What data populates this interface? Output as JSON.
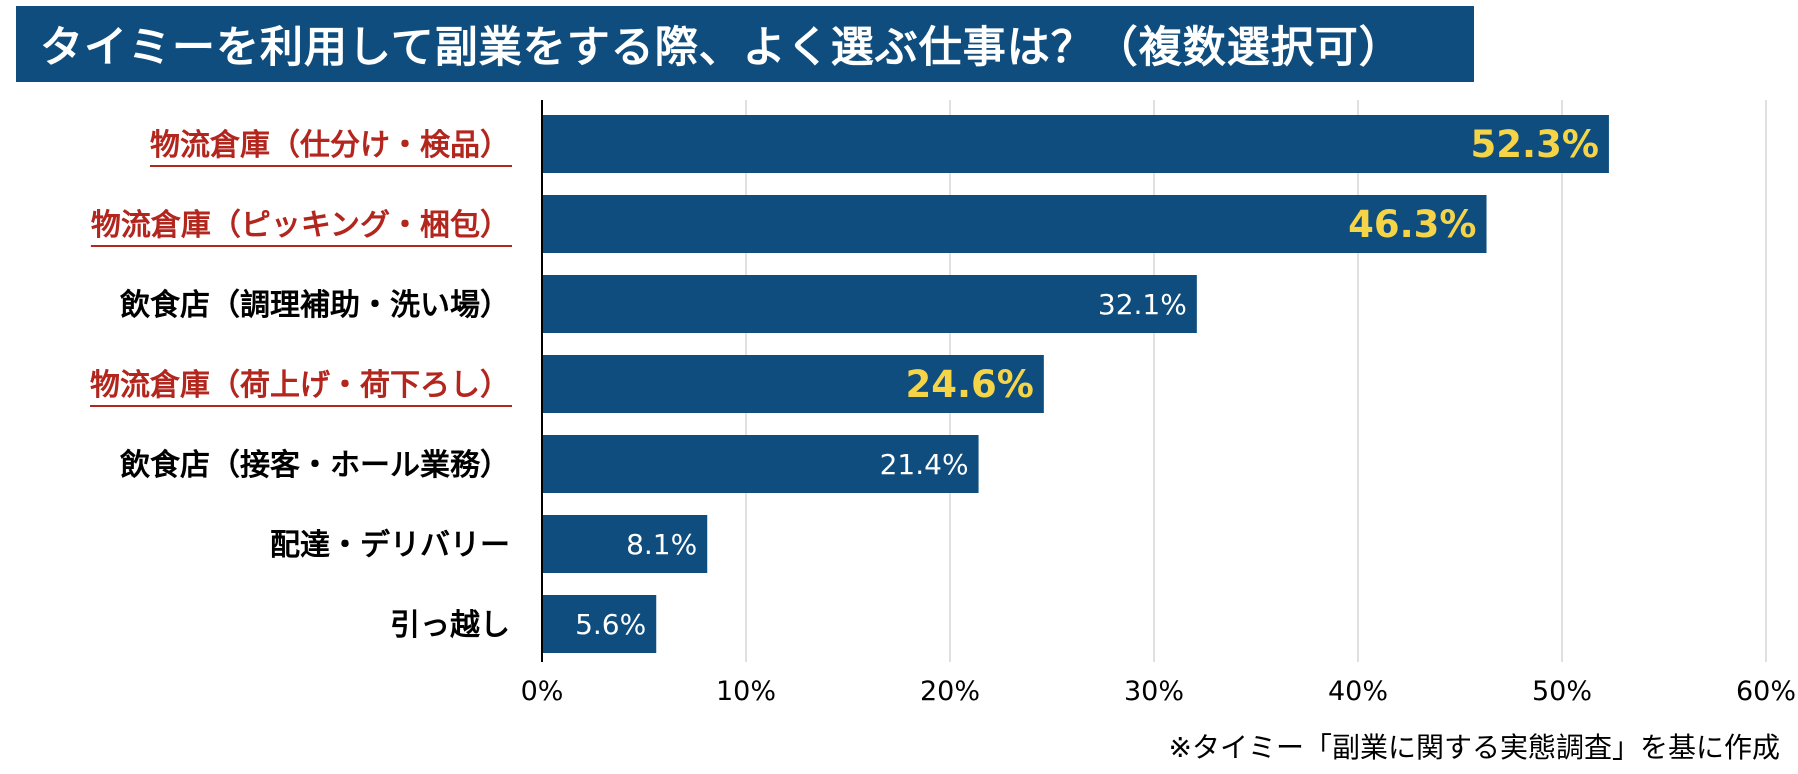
{
  "title": "タイミーを利用して副業をする際、よく選ぶ仕事は？（複数選択可）",
  "source_note": "※タイミー「副業に関する実態調査」を基に作成",
  "colors": {
    "bar": "#0e4d7d",
    "highlight_label": "#b3261e",
    "highlight_value": "#f5d547",
    "normal_value": "#ffffff",
    "grid": "#cccccc"
  },
  "chart_data": {
    "type": "bar",
    "orientation": "horizontal",
    "categories": [
      "物流倉庫（仕分け・検品）",
      "物流倉庫（ピッキング・梱包）",
      "飲食店（調理補助・洗い場）",
      "物流倉庫（荷上げ・荷下ろし）",
      "飲食店（接客・ホール業務）",
      "配達・デリバリー",
      "引っ越し"
    ],
    "values": [
      52.3,
      46.3,
      32.1,
      24.6,
      21.4,
      8.1,
      5.6
    ],
    "value_labels": [
      "52.3%",
      "46.3%",
      "32.1%",
      "24.6%",
      "21.4%",
      "8.1%",
      "5.6%"
    ],
    "highlighted": [
      true,
      true,
      false,
      true,
      false,
      false,
      false
    ],
    "x_ticks": [
      "0%",
      "10%",
      "20%",
      "30%",
      "40%",
      "50%",
      "60%"
    ],
    "xlim": [
      0,
      60
    ],
    "grid": "vertical",
    "xlabel": "",
    "ylabel": ""
  }
}
